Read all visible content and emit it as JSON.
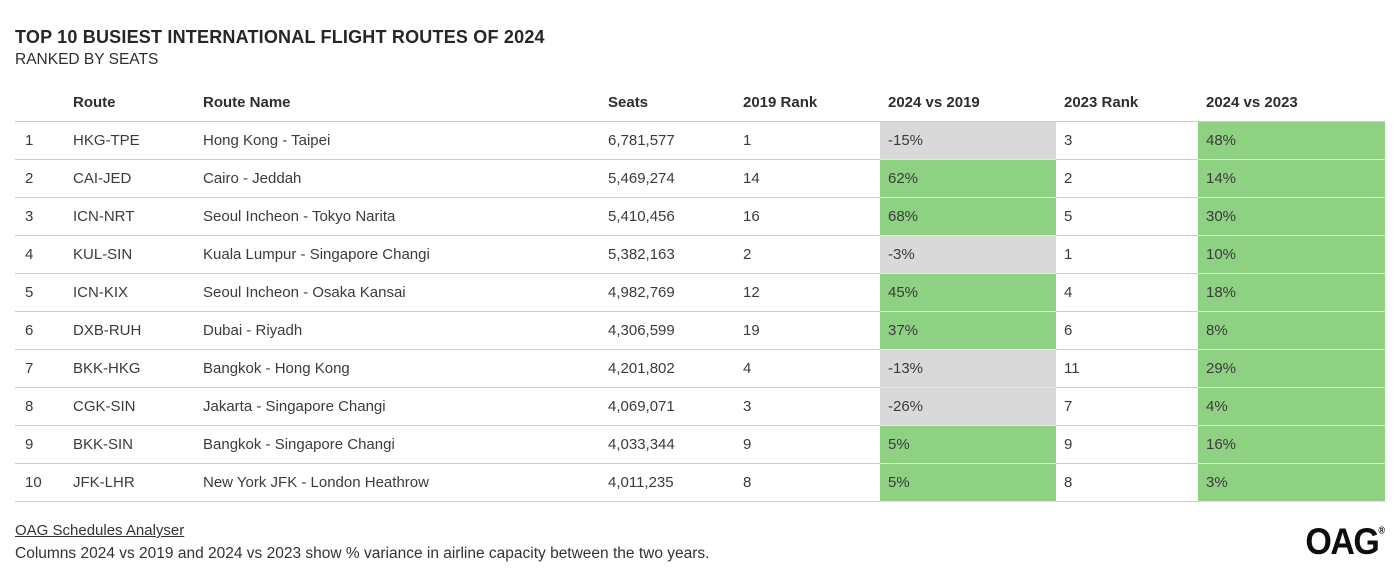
{
  "chart_data": {
    "type": "table",
    "title": "TOP 10 BUSIEST INTERNATIONAL FLIGHT ROUTES OF 2024",
    "subtitle": "RANKED BY SEATS",
    "columns": [
      "Route",
      "Route Name",
      "Seats",
      "2019 Rank",
      "2024 vs 2019",
      "2023 Rank",
      "2024 vs 2023"
    ],
    "rows": [
      {
        "rank": "1",
        "route": "HKG-TPE",
        "route_name": "Hong Kong - Taipei",
        "seats": "6,781,577",
        "rank_2019": "1",
        "vs_2019": "-15%",
        "rank_2023": "3",
        "vs_2023": "48%"
      },
      {
        "rank": "2",
        "route": "CAI-JED",
        "route_name": "Cairo - Jeddah",
        "seats": "5,469,274",
        "rank_2019": "14",
        "vs_2019": "62%",
        "rank_2023": "2",
        "vs_2023": "14%"
      },
      {
        "rank": "3",
        "route": "ICN-NRT",
        "route_name": "Seoul Incheon - Tokyo Narita",
        "seats": "5,410,456",
        "rank_2019": "16",
        "vs_2019": "68%",
        "rank_2023": "5",
        "vs_2023": "30%"
      },
      {
        "rank": "4",
        "route": "KUL-SIN",
        "route_name": "Kuala Lumpur - Singapore Changi",
        "seats": "5,382,163",
        "rank_2019": "2",
        "vs_2019": "-3%",
        "rank_2023": "1",
        "vs_2023": "10%"
      },
      {
        "rank": "5",
        "route": "ICN-KIX",
        "route_name": "Seoul Incheon - Osaka Kansai",
        "seats": "4,982,769",
        "rank_2019": "12",
        "vs_2019": "45%",
        "rank_2023": "4",
        "vs_2023": "18%"
      },
      {
        "rank": "6",
        "route": "DXB-RUH",
        "route_name": "Dubai - Riyadh",
        "seats": "4,306,599",
        "rank_2019": "19",
        "vs_2019": "37%",
        "rank_2023": "6",
        "vs_2023": "8%"
      },
      {
        "rank": "7",
        "route": "BKK-HKG",
        "route_name": "Bangkok - Hong Kong",
        "seats": "4,201,802",
        "rank_2019": "4",
        "vs_2019": "-13%",
        "rank_2023": "11",
        "vs_2023": "29%"
      },
      {
        "rank": "8",
        "route": "CGK-SIN",
        "route_name": "Jakarta - Singapore Changi",
        "seats": "4,069,071",
        "rank_2019": "3",
        "vs_2019": "-26%",
        "rank_2023": "7",
        "vs_2023": "4%"
      },
      {
        "rank": "9",
        "route": "BKK-SIN",
        "route_name": "Bangkok - Singapore Changi",
        "seats": "4,033,344",
        "rank_2019": "9",
        "vs_2019": "5%",
        "rank_2023": "9",
        "vs_2023": "16%"
      },
      {
        "rank": "10",
        "route": "JFK-LHR",
        "route_name": "New York JFK - London Heathrow",
        "seats": "4,011,235",
        "rank_2019": "8",
        "vs_2019": "5%",
        "rank_2023": "8",
        "vs_2023": "3%"
      }
    ],
    "layout_hints": {
      "grid": "horizontal row dividers",
      "variance_cells_highlighted": true
    }
  },
  "colors": {
    "positive_variance_bg": "#8fd182",
    "negative_variance_bg": "#d9d9d9"
  },
  "footer": {
    "source_link": "OAG Schedules Analyser",
    "note": "Columns 2024 vs 2019 and 2024 vs 2023 show % variance in airline capacity between the two years.",
    "logo_text": "OAG",
    "logo_mark": "®"
  }
}
